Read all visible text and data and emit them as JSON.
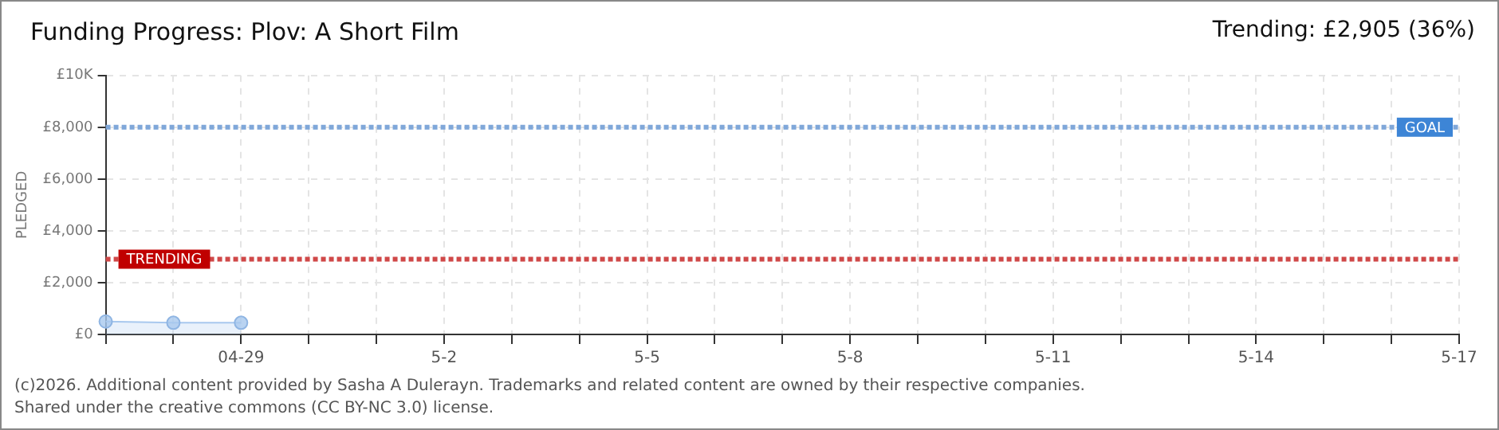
{
  "chart_data": {
    "type": "area",
    "title": "Funding Progress: Plov: A Short Film",
    "subtitle": "Trending: £2,905 (36%)",
    "ylabel": "PLEDGED",
    "categories": [
      null,
      null,
      "04-29",
      null,
      null,
      "5-2",
      null,
      null,
      "5-5",
      null,
      null,
      "5-8",
      null,
      null,
      "5-11",
      null,
      null,
      "5-14",
      null,
      null,
      "5-17"
    ],
    "series": [
      {
        "color": "#a8c8ee",
        "values": [
          500,
          450,
          450,
          null,
          null,
          null,
          null,
          null,
          null,
          null,
          null,
          null,
          null,
          null,
          null,
          null,
          null,
          null,
          null,
          null,
          null
        ]
      }
    ],
    "ylim": [
      0,
      10000
    ],
    "yticks": [
      {
        "value": 0,
        "label": "£0"
      },
      {
        "value": 2000,
        "label": "£2,000"
      },
      {
        "value": 4000,
        "label": "£4,000"
      },
      {
        "value": 6000,
        "label": "£6,000"
      },
      {
        "value": 8000,
        "label": "£8,000"
      },
      {
        "value": 10000,
        "label": "£10K"
      }
    ],
    "ref_lines": [
      {
        "axis": "y",
        "value": 8000,
        "label": "GOAL",
        "color": "#7fa7d9",
        "line_style": "dotted"
      },
      {
        "axis": "y",
        "value": 2905,
        "label": "TRENDING",
        "color": "#d04848",
        "line_style": "dotted"
      }
    ],
    "grid": true,
    "marker": "circle",
    "legend": false,
    "annotations": [
      "(c)2026. Additional content provided by Sasha A Dulerayn. Trademarks and related content are owned by their respective companies.",
      "Shared under the creative commons (CC BY-NC 3.0) license."
    ]
  }
}
